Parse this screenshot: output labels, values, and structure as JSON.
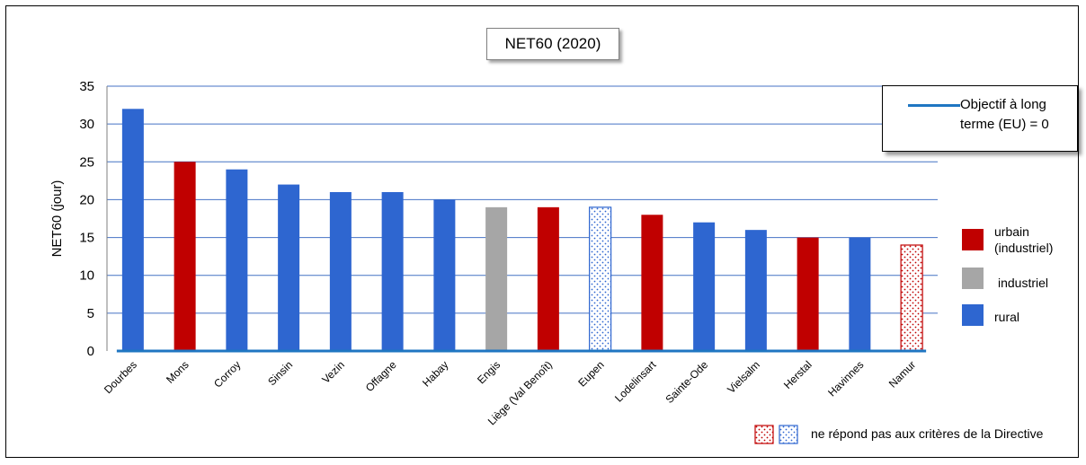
{
  "chart_data": {
    "type": "bar",
    "title": "NET60 (2020)",
    "ylabel": "NET60 (jour)",
    "xlabel": "",
    "ylim": [
      0,
      35
    ],
    "yticks": [
      0,
      5,
      10,
      15,
      20,
      25,
      30,
      35
    ],
    "grid": true,
    "categories": [
      "Dourbes",
      "Mons",
      "Corroy",
      "Sinsin",
      "Vezin",
      "Offagne",
      "Habay",
      "Engis",
      "Liège (Val Benoît)",
      "Eupen",
      "Lodelinsart",
      "Sainte-Ode",
      "Vielsalm",
      "Herstal",
      "Havinnes",
      "Namur"
    ],
    "values": [
      32,
      25,
      24,
      22,
      21,
      21,
      20,
      19,
      19,
      19,
      18,
      17,
      16,
      15,
      15,
      14
    ],
    "bar_class": [
      "rural",
      "urbain",
      "rural",
      "rural",
      "rural",
      "rural",
      "rural",
      "industriel",
      "urbain",
      "rural",
      "urbain",
      "rural",
      "rural",
      "urbain",
      "rural",
      "urbain"
    ],
    "bar_pattern": [
      "solid",
      "solid",
      "solid",
      "solid",
      "solid",
      "solid",
      "solid",
      "solid",
      "solid",
      "dotted",
      "solid",
      "solid",
      "solid",
      "solid",
      "solid",
      "dotted"
    ],
    "objective": {
      "label": "Objectif à long terme (EU) = 0",
      "value": 0,
      "color": "#1f76c2"
    },
    "legend": [
      {
        "key": "urbain",
        "label": "urbain (industriel)",
        "color": "#c00000"
      },
      {
        "key": "industriel",
        "label": "industriel",
        "color": "#a6a6a6"
      },
      {
        "key": "rural",
        "label": "rural",
        "color": "#2e66d0"
      }
    ],
    "footnote": "ne répond pas aux critères de la Directive"
  }
}
